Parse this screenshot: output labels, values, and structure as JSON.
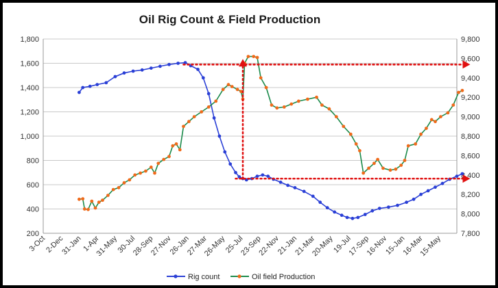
{
  "chart_data": {
    "type": "line",
    "title": "Oil Rig Count & Field Production",
    "x_tick_labels": [
      "3-Oct",
      "2-Dec",
      "31-Jan",
      "1-Apr",
      "31-May",
      "30-Jul",
      "28-Sep",
      "27-Nov",
      "26-Jan",
      "27-Mar",
      "26-May",
      "25-Jul",
      "23-Sep",
      "22-Nov",
      "21-Jan",
      "21-Mar",
      "20-May",
      "19-Jul",
      "17-Sep",
      "16-Nov",
      "15-Jan",
      "16-Mar",
      "15-May"
    ],
    "y_left_ticks": [
      "200",
      "400",
      "600",
      "800",
      "1,000",
      "1,200",
      "1,400",
      "1,600",
      "1,800"
    ],
    "y_right_ticks": [
      "7,800",
      "8,000",
      "8,200",
      "8,400",
      "8,600",
      "8,800",
      "9,000",
      "9,200",
      "9,400",
      "9,600",
      "9,800"
    ],
    "ylim_left": [
      200,
      1800
    ],
    "ylim_right": [
      7800,
      9800
    ],
    "grid": "horizontal",
    "legend_position": "bottom",
    "series": [
      {
        "name": "Rig count",
        "axis": "left",
        "color": "#2a3fd6",
        "points": [
          [
            2.0,
            1360
          ],
          [
            2.2,
            1400
          ],
          [
            2.6,
            1410
          ],
          [
            3.0,
            1425
          ],
          [
            3.5,
            1440
          ],
          [
            4.0,
            1490
          ],
          [
            4.5,
            1520
          ],
          [
            5.0,
            1535
          ],
          [
            5.5,
            1545
          ],
          [
            6.0,
            1560
          ],
          [
            6.5,
            1575
          ],
          [
            7.0,
            1590
          ],
          [
            7.5,
            1600
          ],
          [
            7.9,
            1605
          ],
          [
            8.2,
            1580
          ],
          [
            8.6,
            1550
          ],
          [
            8.9,
            1480
          ],
          [
            9.2,
            1350
          ],
          [
            9.5,
            1150
          ],
          [
            9.8,
            1000
          ],
          [
            10.1,
            870
          ],
          [
            10.4,
            770
          ],
          [
            10.7,
            700
          ],
          [
            10.9,
            665
          ],
          [
            11.1,
            650
          ],
          [
            11.3,
            640
          ],
          [
            11.6,
            650
          ],
          [
            11.9,
            670
          ],
          [
            12.2,
            680
          ],
          [
            12.5,
            670
          ],
          [
            12.8,
            645
          ],
          [
            13.2,
            620
          ],
          [
            13.6,
            595
          ],
          [
            14.0,
            575
          ],
          [
            14.5,
            545
          ],
          [
            15.0,
            505
          ],
          [
            15.4,
            455
          ],
          [
            15.8,
            410
          ],
          [
            16.2,
            375
          ],
          [
            16.6,
            348
          ],
          [
            16.9,
            330
          ],
          [
            17.2,
            322
          ],
          [
            17.5,
            330
          ],
          [
            17.9,
            355
          ],
          [
            18.3,
            385
          ],
          [
            18.7,
            405
          ],
          [
            19.2,
            415
          ],
          [
            19.7,
            430
          ],
          [
            20.2,
            455
          ],
          [
            20.6,
            480
          ],
          [
            21.0,
            520
          ],
          [
            21.4,
            550
          ],
          [
            21.8,
            580
          ],
          [
            22.2,
            610
          ],
          [
            22.6,
            645
          ],
          [
            23.0,
            670
          ],
          [
            23.3,
            690
          ]
        ]
      },
      {
        "name": "Oil field Production",
        "axis": "right",
        "color": "#1a8a4a",
        "marker_color": "#f06a1a",
        "points": [
          [
            2.0,
            8150
          ],
          [
            2.2,
            8155
          ],
          [
            2.3,
            8050
          ],
          [
            2.5,
            8045
          ],
          [
            2.7,
            8130
          ],
          [
            2.9,
            8060
          ],
          [
            3.1,
            8120
          ],
          [
            3.3,
            8140
          ],
          [
            3.6,
            8190
          ],
          [
            3.9,
            8250
          ],
          [
            4.2,
            8270
          ],
          [
            4.5,
            8320
          ],
          [
            4.8,
            8350
          ],
          [
            5.1,
            8400
          ],
          [
            5.4,
            8420
          ],
          [
            5.7,
            8440
          ],
          [
            6.0,
            8480
          ],
          [
            6.2,
            8420
          ],
          [
            6.4,
            8520
          ],
          [
            6.7,
            8560
          ],
          [
            7.0,
            8590
          ],
          [
            7.2,
            8700
          ],
          [
            7.4,
            8720
          ],
          [
            7.6,
            8660
          ],
          [
            7.8,
            8900
          ],
          [
            8.1,
            8950
          ],
          [
            8.4,
            9000
          ],
          [
            8.8,
            9050
          ],
          [
            9.2,
            9100
          ],
          [
            9.6,
            9160
          ],
          [
            10.0,
            9280
          ],
          [
            10.3,
            9330
          ],
          [
            10.5,
            9310
          ],
          [
            10.8,
            9280
          ],
          [
            11.0,
            9260
          ],
          [
            11.1,
            9180
          ],
          [
            11.2,
            9550
          ],
          [
            11.4,
            9620
          ],
          [
            11.7,
            9620
          ],
          [
            11.9,
            9610
          ],
          [
            12.1,
            9400
          ],
          [
            12.4,
            9300
          ],
          [
            12.7,
            9120
          ],
          [
            13.0,
            9090
          ],
          [
            13.4,
            9100
          ],
          [
            13.8,
            9130
          ],
          [
            14.2,
            9160
          ],
          [
            14.7,
            9180
          ],
          [
            15.2,
            9200
          ],
          [
            15.5,
            9120
          ],
          [
            15.9,
            9080
          ],
          [
            16.3,
            9000
          ],
          [
            16.7,
            8900
          ],
          [
            17.1,
            8820
          ],
          [
            17.4,
            8720
          ],
          [
            17.6,
            8650
          ],
          [
            17.8,
            8420
          ],
          [
            18.1,
            8470
          ],
          [
            18.4,
            8520
          ],
          [
            18.6,
            8560
          ],
          [
            18.9,
            8470
          ],
          [
            19.3,
            8450
          ],
          [
            19.6,
            8460
          ],
          [
            19.9,
            8500
          ],
          [
            20.1,
            8550
          ],
          [
            20.3,
            8700
          ],
          [
            20.7,
            8720
          ],
          [
            21.0,
            8820
          ],
          [
            21.3,
            8880
          ],
          [
            21.6,
            8970
          ],
          [
            21.8,
            8950
          ],
          [
            22.1,
            9000
          ],
          [
            22.5,
            9040
          ],
          [
            22.8,
            9120
          ],
          [
            23.1,
            9250
          ],
          [
            23.3,
            9270
          ]
        ]
      }
    ],
    "annotations": {
      "dotted_arrows": [
        {
          "from": [
            7.8,
            1590
          ],
          "to": [
            23.4,
            1590
          ],
          "axis": "left",
          "color": "#e01010"
        },
        {
          "from": [
            10.7,
            650
          ],
          "to": [
            23.4,
            650
          ],
          "axis": "left",
          "color": "#e01010"
        },
        {
          "from": [
            11.1,
            650
          ],
          "to": [
            11.1,
            1590
          ],
          "axis": "left",
          "color": "#e01010"
        }
      ]
    }
  }
}
